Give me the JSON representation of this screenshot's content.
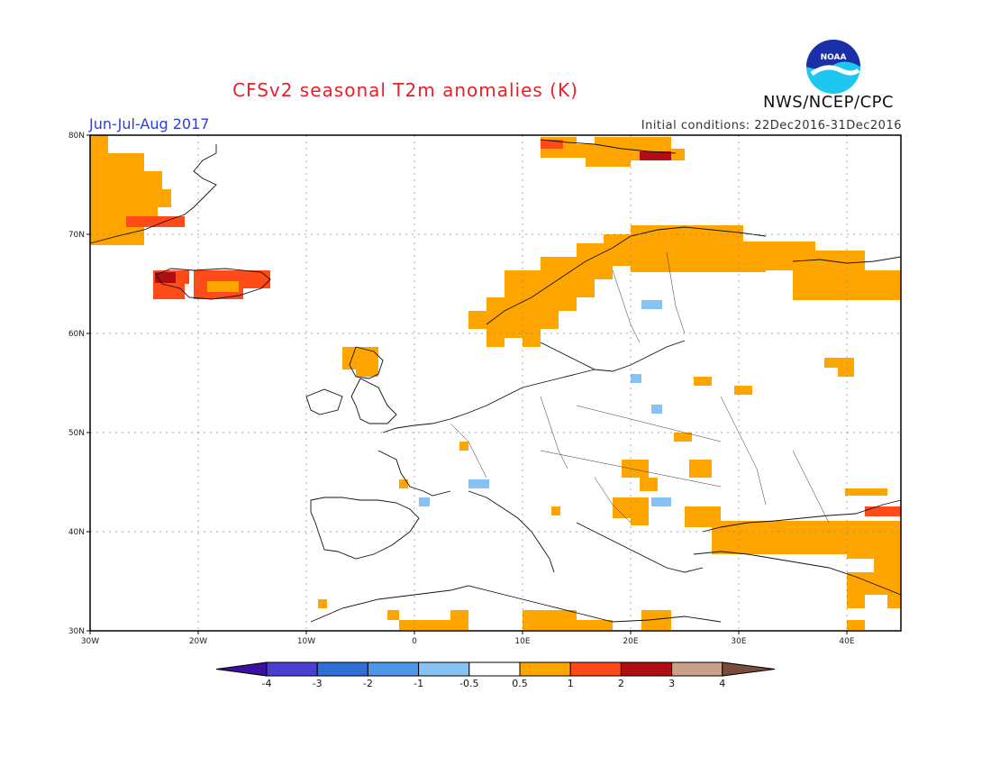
{
  "header": {
    "title": "CFSv2 seasonal T2m anomalies (K)",
    "period": "Jun-Jul-Aug 2017",
    "initial_conditions": "Initial conditions: 22Dec2016-31Dec2016",
    "organization": "NWS/NCEP/CPC",
    "logo_text": "NOAA"
  },
  "map": {
    "lat_labels": [
      "80N",
      "70N",
      "60N",
      "50N",
      "40N",
      "30N"
    ],
    "lon_labels": [
      "30W",
      "20W",
      "10W",
      "0",
      "10E",
      "20E",
      "30E",
      "40E"
    ],
    "lat_range": [
      30,
      80
    ],
    "lon_range": [
      -30,
      45
    ],
    "grid_step_deg": 10
  },
  "colorbar": {
    "tick_labels": [
      "-4",
      "-3",
      "-2",
      "-1",
      "-0.5",
      "0.5",
      "1",
      "2",
      "3",
      "4"
    ],
    "colors": [
      "#3d0f9e",
      "#4a3fd0",
      "#2f6fd6",
      "#4d96e8",
      "#86c2f4",
      "#ffffff",
      "#ffa500",
      "#ff4a1a",
      "#b00e10",
      "#c9a08a",
      "#7a4d3a"
    ]
  },
  "anomaly_regions": [
    {
      "level": "0.5-1",
      "color": "#ffa500",
      "label": "Greenland"
    },
    {
      "level": "0.5-1",
      "color": "#ffa500",
      "label": "Svalbard"
    },
    {
      "level": "0.5-1",
      "color": "#ffa500",
      "label": "Scandinavia north"
    },
    {
      "level": "0.5-1",
      "color": "#ffa500",
      "label": "Northwest Russia"
    },
    {
      "level": "0.5-1",
      "color": "#ffa500",
      "label": "Scotland"
    },
    {
      "level": "0.5-1",
      "color": "#ffa500",
      "label": "Balkans"
    },
    {
      "level": "0.5-1",
      "color": "#ffa500",
      "label": "Turkey"
    },
    {
      "level": "0.5-1",
      "color": "#ffa500",
      "label": "North Africa"
    },
    {
      "level": "1-2",
      "color": "#ff4a1a",
      "label": "Iceland"
    },
    {
      "level": "1-2",
      "color": "#ff4a1a",
      "label": "Caucasus"
    },
    {
      "level": "2-3",
      "color": "#b00e10",
      "label": "Svalbard east"
    },
    {
      "level": "-1--0.5",
      "color": "#86c2f4",
      "label": "Scattered cool cells"
    }
  ]
}
